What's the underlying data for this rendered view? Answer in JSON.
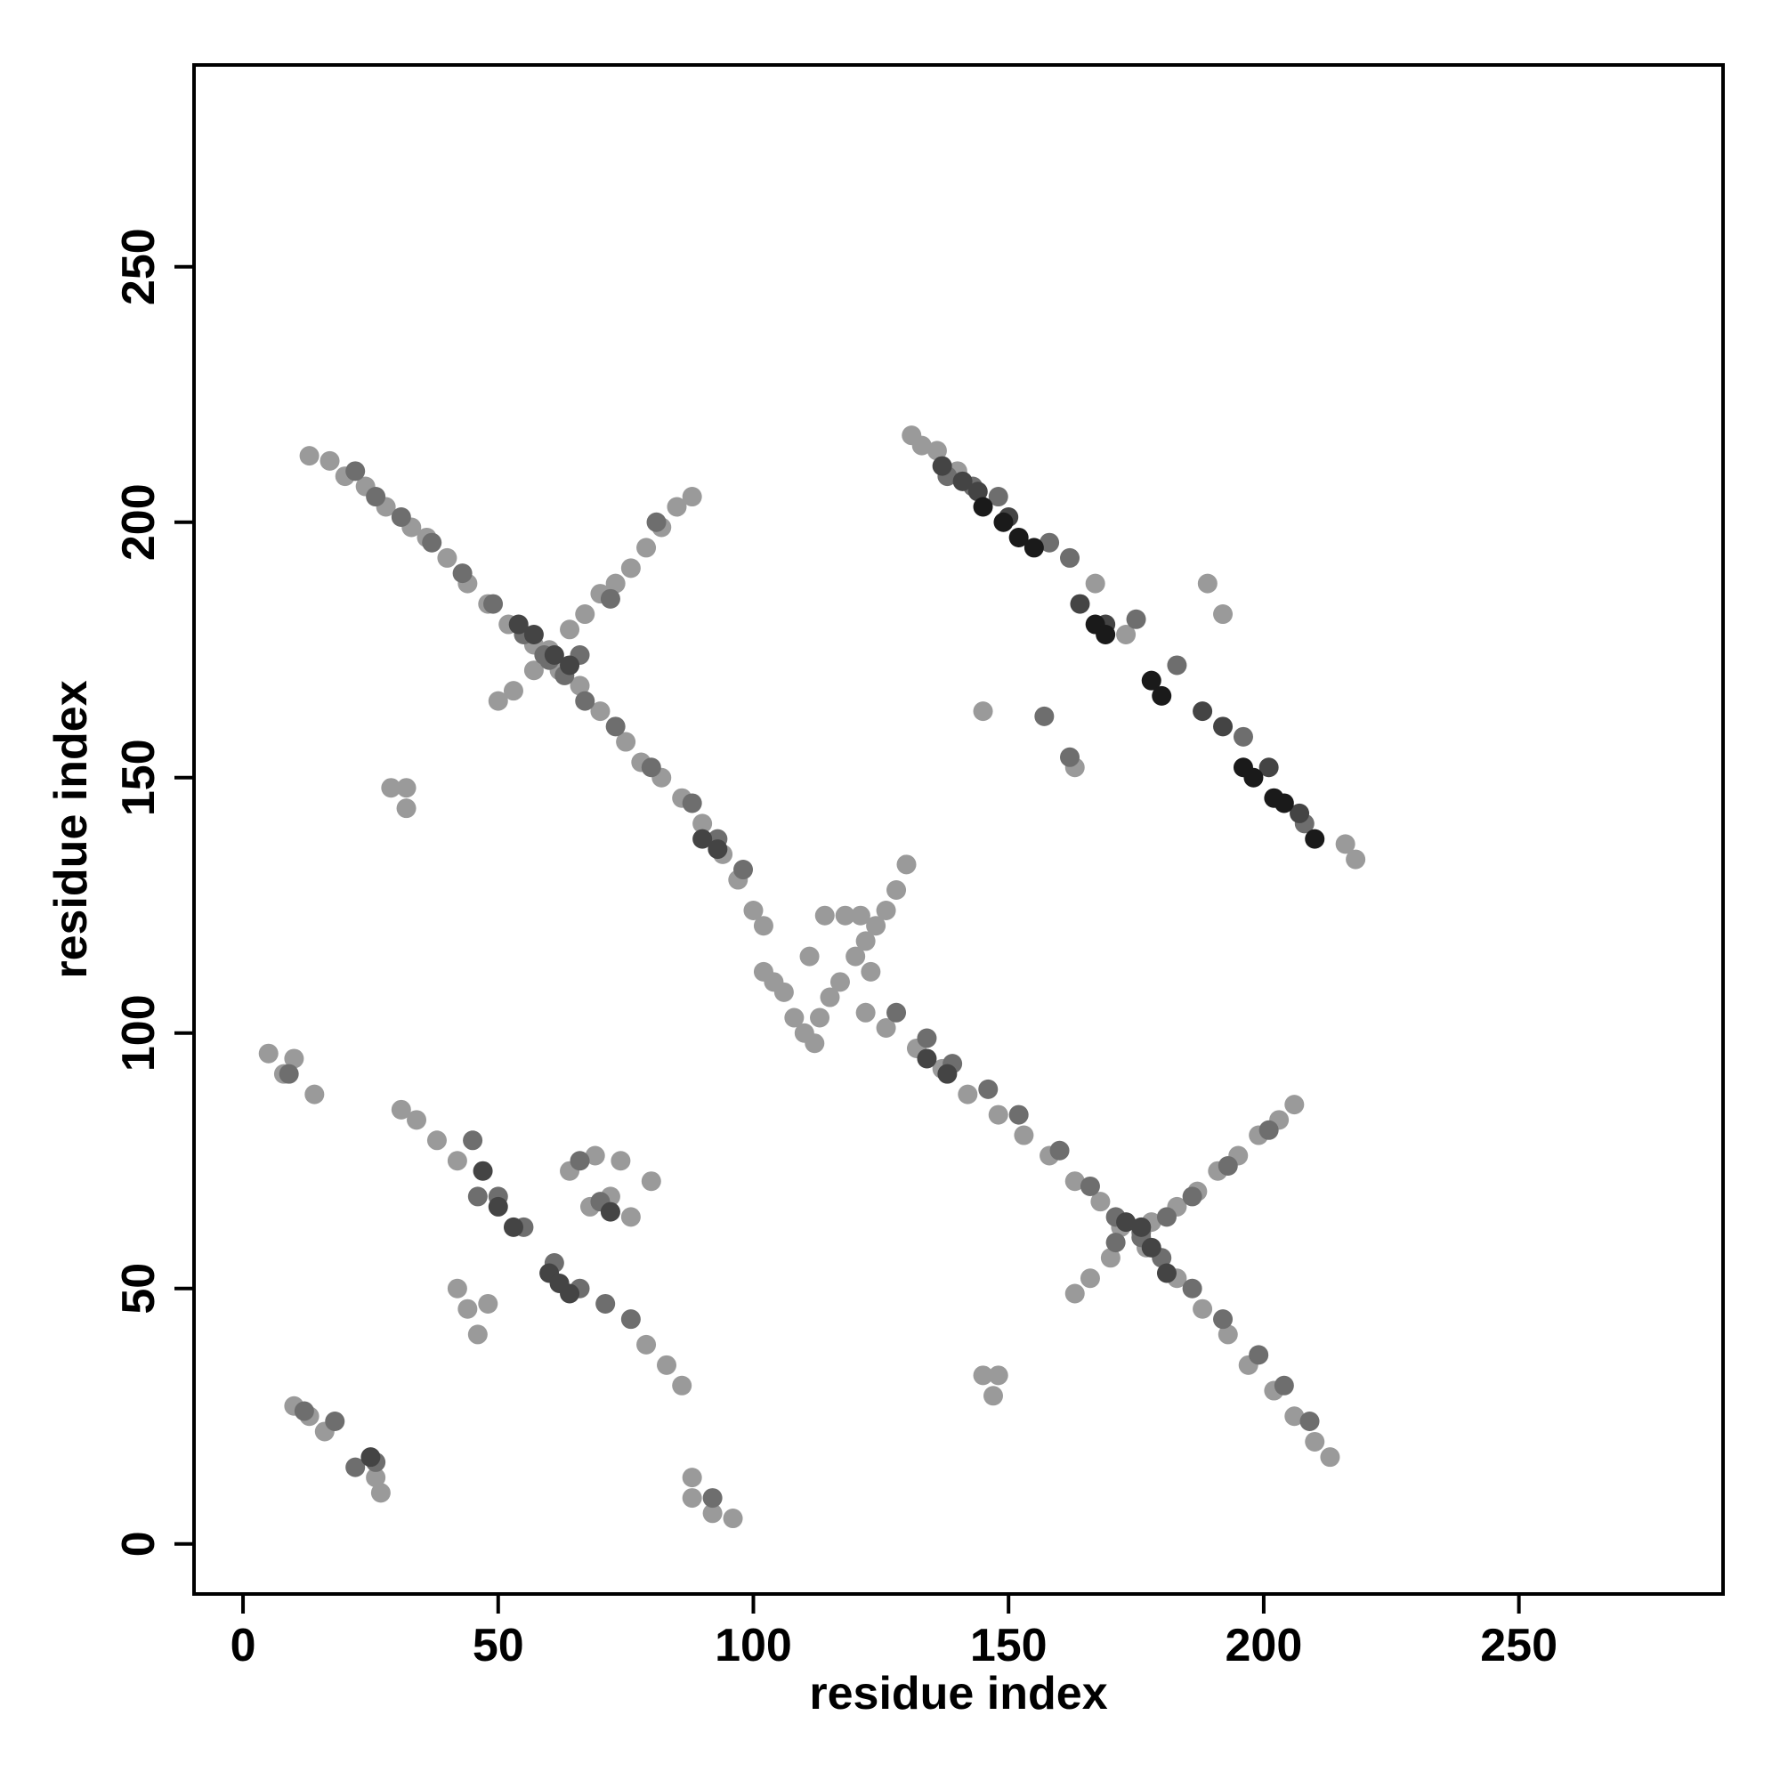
{
  "chart_data": {
    "type": "scatter",
    "xlabel": "residue index",
    "ylabel": "residue index",
    "xlim": [
      -9.6,
      290
    ],
    "ylim": [
      -9.8,
      289.5
    ],
    "xticks": [
      0,
      50,
      100,
      150,
      200,
      250
    ],
    "yticks": [
      0,
      50,
      100,
      150,
      200,
      250
    ],
    "series": [
      {
        "color": "#9a9a9a",
        "x": [
          13,
          17,
          20,
          24,
          28,
          33,
          36,
          40,
          44,
          48,
          52,
          57,
          62,
          66,
          70,
          75,
          78,
          82,
          86,
          90,
          94,
          97,
          100,
          102,
          50,
          53,
          57,
          60,
          64,
          67,
          70,
          73,
          76,
          79,
          82,
          85,
          88,
          102,
          104,
          106,
          108,
          110,
          112,
          113,
          115,
          117,
          120,
          122,
          124,
          126,
          128,
          130,
          111,
          114,
          118,
          121,
          123,
          122,
          126,
          132,
          137,
          142,
          148,
          153,
          158,
          163,
          168,
          172,
          177,
          183,
          188,
          193,
          197,
          202,
          206,
          210,
          213,
          163,
          166,
          170,
          178,
          183,
          187,
          191,
          195,
          199,
          203,
          206,
          131,
          133,
          136,
          140,
          167,
          173,
          189,
          192,
          216,
          218,
          31,
          34,
          38,
          42,
          68,
          72,
          76,
          79,
          83,
          86,
          42,
          44,
          46,
          48,
          64,
          69,
          74,
          80,
          5,
          8,
          10,
          14,
          29,
          32,
          32,
          10,
          13,
          16,
          26,
          27,
          88,
          88,
          92,
          96,
          145,
          148,
          147,
          145,
          163
        ],
        "values": [
          213,
          212,
          209,
          207,
          203,
          199,
          197,
          193,
          188,
          184,
          180,
          176,
          171,
          168,
          163,
          157,
          153,
          150,
          146,
          141,
          135,
          130,
          124,
          121,
          165,
          167,
          171,
          175,
          179,
          182,
          186,
          188,
          191,
          195,
          199,
          203,
          205,
          112,
          110,
          108,
          103,
          100,
          98,
          103,
          107,
          110,
          115,
          118,
          121,
          124,
          128,
          133,
          115,
          123,
          123,
          123,
          112,
          104,
          101,
          97,
          93,
          88,
          84,
          80,
          76,
          71,
          67,
          62,
          58,
          52,
          46,
          41,
          35,
          30,
          25,
          20,
          17,
          49,
          52,
          56,
          63,
          66,
          69,
          73,
          76,
          80,
          83,
          86,
          217,
          215,
          214,
          210,
          188,
          178,
          188,
          182,
          137,
          134,
          85,
          83,
          79,
          75,
          66,
          68,
          64,
          39,
          35,
          31,
          50,
          46,
          41,
          47,
          73,
          76,
          75,
          71,
          96,
          92,
          95,
          88,
          148,
          148,
          144,
          27,
          25,
          22,
          13,
          10,
          13,
          9,
          6,
          5,
          33,
          33,
          29,
          163,
          152
        ]
      },
      {
        "color": "#6e6e6e",
        "x": [
          22,
          26,
          31,
          37,
          43,
          49,
          55,
          59,
          63,
          67,
          73,
          80,
          88,
          93,
          98,
          60,
          66,
          72,
          81,
          128,
          134,
          139,
          146,
          152,
          160,
          166,
          171,
          176,
          180,
          186,
          192,
          199,
          204,
          209,
          171,
          176,
          181,
          186,
          193,
          201,
          138,
          143,
          148,
          158,
          162,
          175,
          183,
          196,
          208,
          45,
          50,
          55,
          61,
          66,
          71,
          76,
          46,
          66,
          70,
          9,
          12,
          18,
          22,
          26,
          92,
          157,
          162
        ],
        "values": [
          210,
          205,
          201,
          196,
          190,
          184,
          178,
          174,
          170,
          165,
          160,
          152,
          145,
          138,
          132,
          173,
          174,
          185,
          200,
          104,
          99,
          94,
          89,
          84,
          77,
          70,
          64,
          60,
          56,
          50,
          44,
          37,
          31,
          24,
          59,
          61,
          64,
          68,
          74,
          81,
          209,
          207,
          205,
          196,
          193,
          181,
          172,
          158,
          141,
          79,
          68,
          62,
          55,
          50,
          47,
          44,
          68,
          75,
          67,
          92,
          26,
          24,
          15,
          16,
          9,
          162,
          154
        ]
      },
      {
        "color": "#444444",
        "x": [
          54,
          57,
          61,
          64,
          90,
          93,
          134,
          138,
          173,
          176,
          178,
          181,
          137,
          141,
          144,
          150,
          164,
          169,
          188,
          192,
          201,
          207,
          47,
          50,
          53,
          60,
          62,
          64,
          72,
          25
        ],
        "values": [
          180,
          178,
          174,
          172,
          138,
          136,
          95,
          92,
          63,
          62,
          58,
          53,
          211,
          208,
          206,
          201,
          184,
          180,
          163,
          160,
          152,
          143,
          73,
          66,
          62,
          53,
          51,
          49,
          65,
          17
        ]
      },
      {
        "color": "#1a1a1a",
        "x": [
          145,
          149,
          152,
          155,
          167,
          169,
          178,
          180,
          196,
          198,
          202,
          204,
          210
        ],
        "values": [
          203,
          200,
          197,
          195,
          180,
          178,
          169,
          166,
          152,
          150,
          146,
          145,
          138
        ]
      }
    ]
  }
}
